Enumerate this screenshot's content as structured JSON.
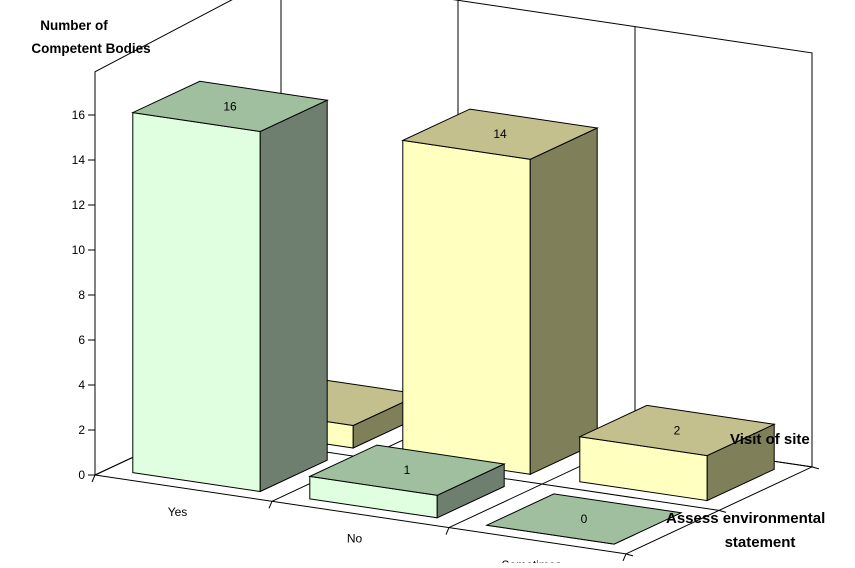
{
  "chart_data": {
    "type": "bar",
    "title": "",
    "ylabel": "Number of Competent Bodies",
    "ylabel_lines": [
      "Number of",
      "Competent Bodies"
    ],
    "xlabel": "",
    "categories": [
      "Yes",
      "No",
      "Sometimes"
    ],
    "yticks": [
      0,
      2,
      4,
      6,
      8,
      10,
      12,
      14,
      16
    ],
    "ylim": [
      0,
      16
    ],
    "series": [
      {
        "name": "Visit of site",
        "values": [
          1,
          14,
          2
        ],
        "colors": {
          "front": "#ffffc0",
          "top": "#c3c08e",
          "side": "#7f7f5a"
        }
      },
      {
        "name": "Assess environmental statement",
        "name_lines": [
          "Assess environmental",
          "statement"
        ],
        "values": [
          16,
          1,
          0
        ],
        "colors": {
          "front": "#e0ffe0",
          "top": "#9fbf9f",
          "side": "#6f7f6f"
        }
      }
    ],
    "value_labels": true,
    "view": "3d",
    "grid": false
  }
}
